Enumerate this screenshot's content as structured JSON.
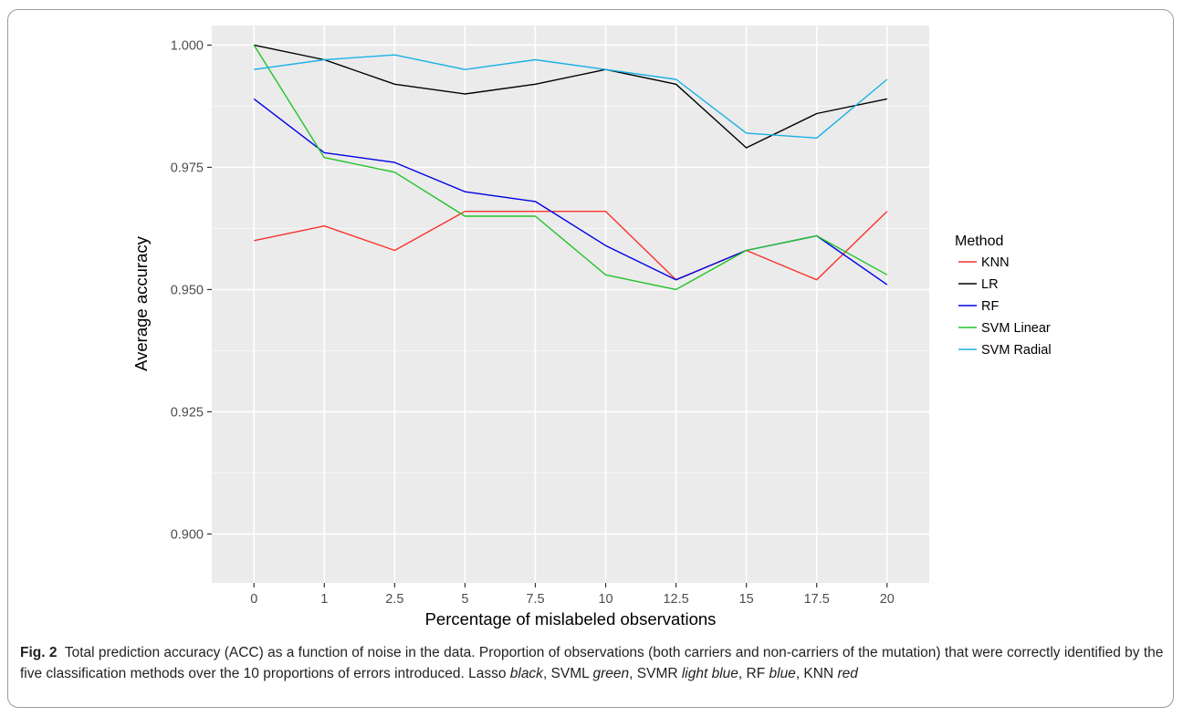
{
  "chart_data": {
    "type": "line",
    "x": [
      "0",
      "1",
      "2.5",
      "5",
      "7.5",
      "10",
      "12.5",
      "15",
      "17.5",
      "20"
    ],
    "xlabel": "Percentage of mislabeled observations",
    "ylabel": "Average accuracy",
    "ylim": [
      0.89,
      1.004
    ],
    "yticks": [
      "0.900",
      "0.925",
      "0.950",
      "0.975",
      "1.000"
    ],
    "grid": true,
    "legend": {
      "title": "Method",
      "position": "right"
    },
    "series": [
      {
        "name": "KNN",
        "color": "#f8332b",
        "values": [
          0.96,
          0.963,
          0.958,
          0.966,
          0.966,
          0.966,
          0.952,
          0.958,
          0.952,
          0.966
        ]
      },
      {
        "name": "LR",
        "color": "#000000",
        "values": [
          1.0,
          0.997,
          0.992,
          0.99,
          0.992,
          0.995,
          0.992,
          0.979,
          0.986,
          0.989
        ]
      },
      {
        "name": "RF",
        "color": "#0000e6",
        "values": [
          0.989,
          0.978,
          0.976,
          0.97,
          0.968,
          0.959,
          0.952,
          0.958,
          0.961,
          0.951
        ]
      },
      {
        "name": "SVM Linear",
        "color": "#22c32a",
        "values": [
          1.0,
          0.977,
          0.974,
          0.965,
          0.965,
          0.953,
          0.95,
          0.958,
          0.961,
          0.953
        ]
      },
      {
        "name": "SVM Radial",
        "color": "#1ab1e6",
        "values": [
          0.995,
          0.997,
          0.998,
          0.995,
          0.997,
          0.995,
          0.993,
          0.982,
          0.981,
          0.993
        ]
      }
    ]
  },
  "caption": {
    "label": "Fig. 2",
    "part1": "Total prediction accuracy (ACC) as a function of noise in the data. Proportion of observations (both carriers and non-carriers of the mutation) that were correctly identified by the five classification methods over the 10 proportions of errors introduced. Lasso ",
    "c1": "black",
    "s1": ", SVML ",
    "c2": "green",
    "s2": ", SVMR ",
    "c3": "light blue",
    "s3": ", RF ",
    "c4": "blue",
    "s4": ", KNN ",
    "c5": "red"
  }
}
